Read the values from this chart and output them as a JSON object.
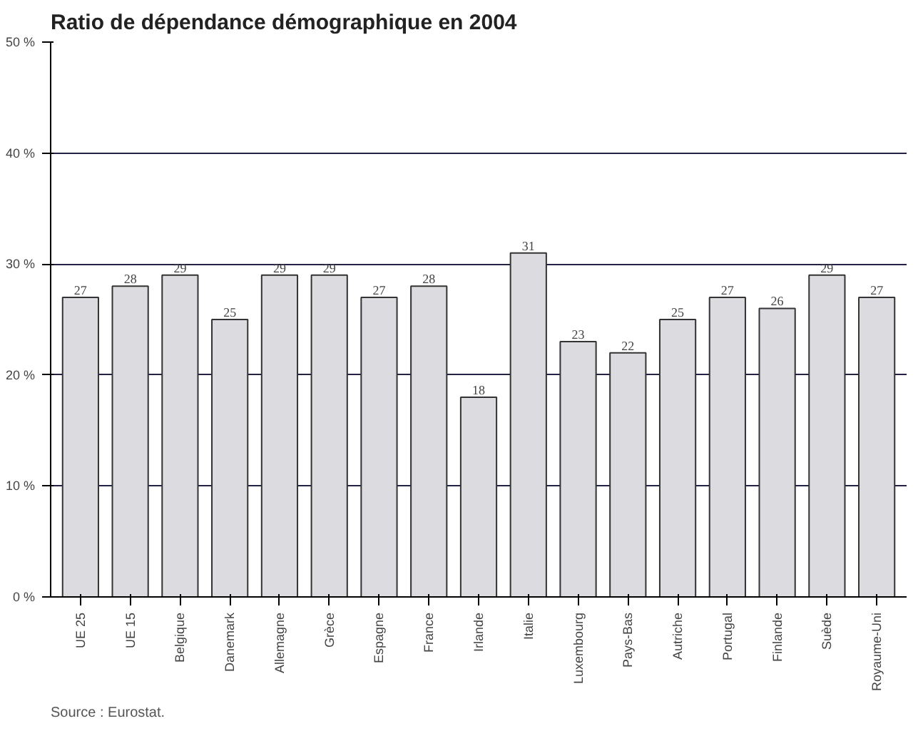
{
  "chart_data": {
    "type": "bar",
    "title": "Ratio de dépendance démographique en 2004",
    "categories": [
      "UE 25",
      "UE 15",
      "Belgique",
      "Danemark",
      "Allemagne",
      "Grèce",
      "Espagne",
      "France",
      "Irlande",
      "Italie",
      "Luxembourg",
      "Pays-Bas",
      "Autriche",
      "Portugal",
      "Finlande",
      "Suède",
      "Royaume-Uni"
    ],
    "values": [
      27,
      28,
      29,
      25,
      29,
      29,
      27,
      28,
      18,
      31,
      23,
      22,
      25,
      27,
      26,
      29,
      27
    ],
    "color": "#dcdce0",
    "ylim": [
      0,
      50
    ],
    "yticks": [
      {
        "value": 0,
        "label": "0 %"
      },
      {
        "value": 10,
        "label": "10 %"
      },
      {
        "value": 20,
        "label": "20 %"
      },
      {
        "value": 30,
        "label": "30 %"
      },
      {
        "value": 40,
        "label": "40 %"
      },
      {
        "value": 50,
        "label": "50 %"
      }
    ],
    "grid": "y",
    "data_labels": true,
    "annotations": [
      "Source : Eurostat."
    ]
  }
}
